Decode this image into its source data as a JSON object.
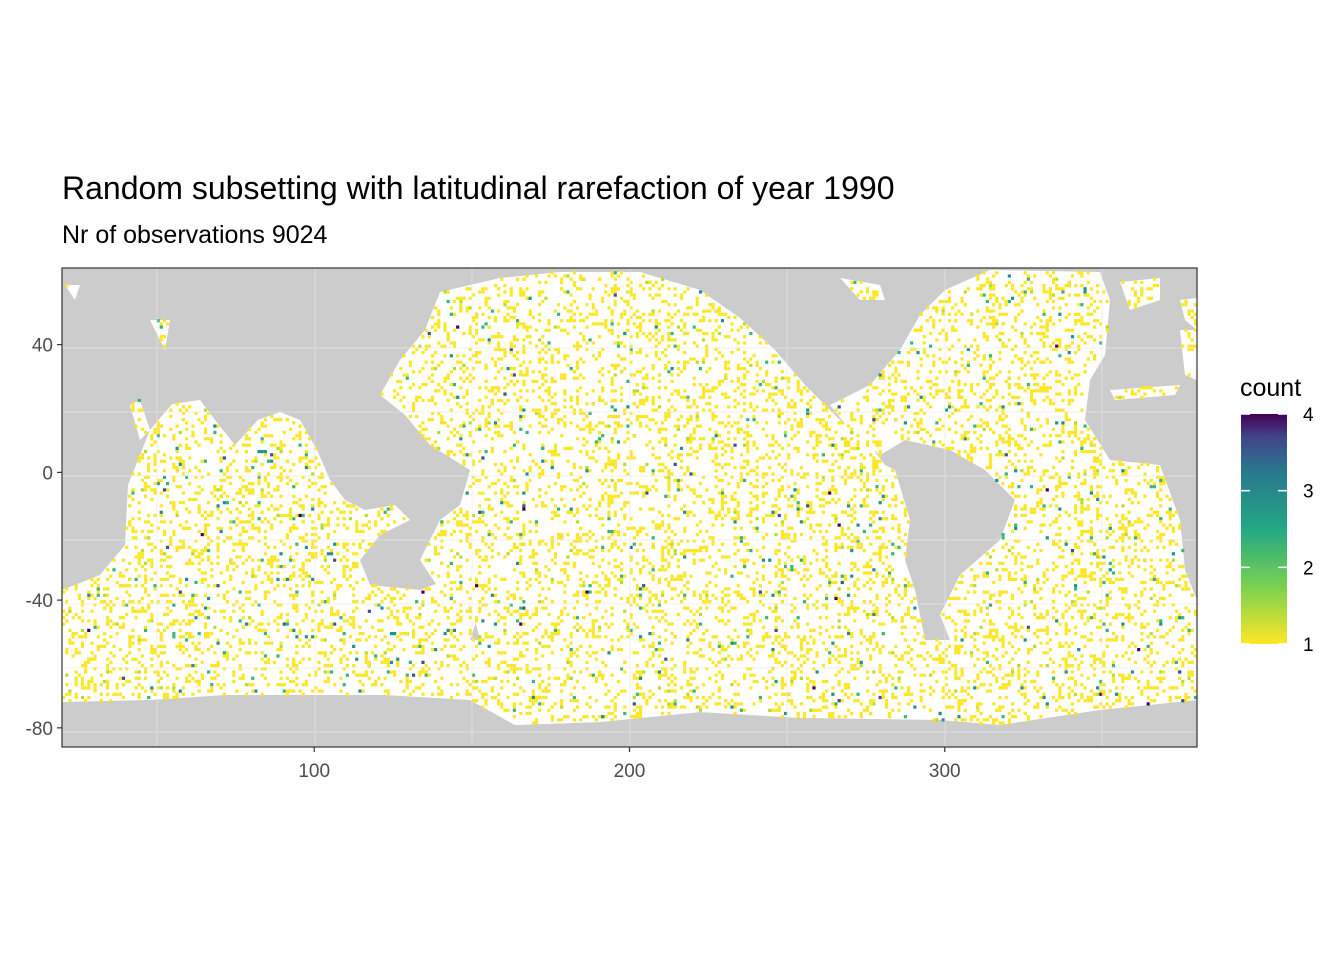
{
  "chart_data": {
    "type": "heatmap",
    "title": "Random subsetting with latitudinal rarefaction of year 1990",
    "subtitle": "Nr of observations 9024",
    "xlabel": "",
    "ylabel": "",
    "xlim": [
      20,
      380
    ],
    "ylim": [
      -86,
      64
    ],
    "x_ticks": [
      100,
      200,
      300
    ],
    "y_ticks": [
      40,
      0,
      -40,
      -80
    ],
    "grid": true,
    "cell_size_degrees": 1,
    "fill_scale": {
      "name": "count",
      "range": [
        1,
        4
      ],
      "breaks": [
        1,
        2,
        3,
        4
      ],
      "palette": "viridis-reversed",
      "colors": [
        "#fde725",
        "#5ec962",
        "#21918c",
        "#3b528b",
        "#440154"
      ]
    },
    "background_land_color": "#cccccc",
    "ocean_color": "#ffffff",
    "total_observations": 9024,
    "legend_position": "right"
  }
}
